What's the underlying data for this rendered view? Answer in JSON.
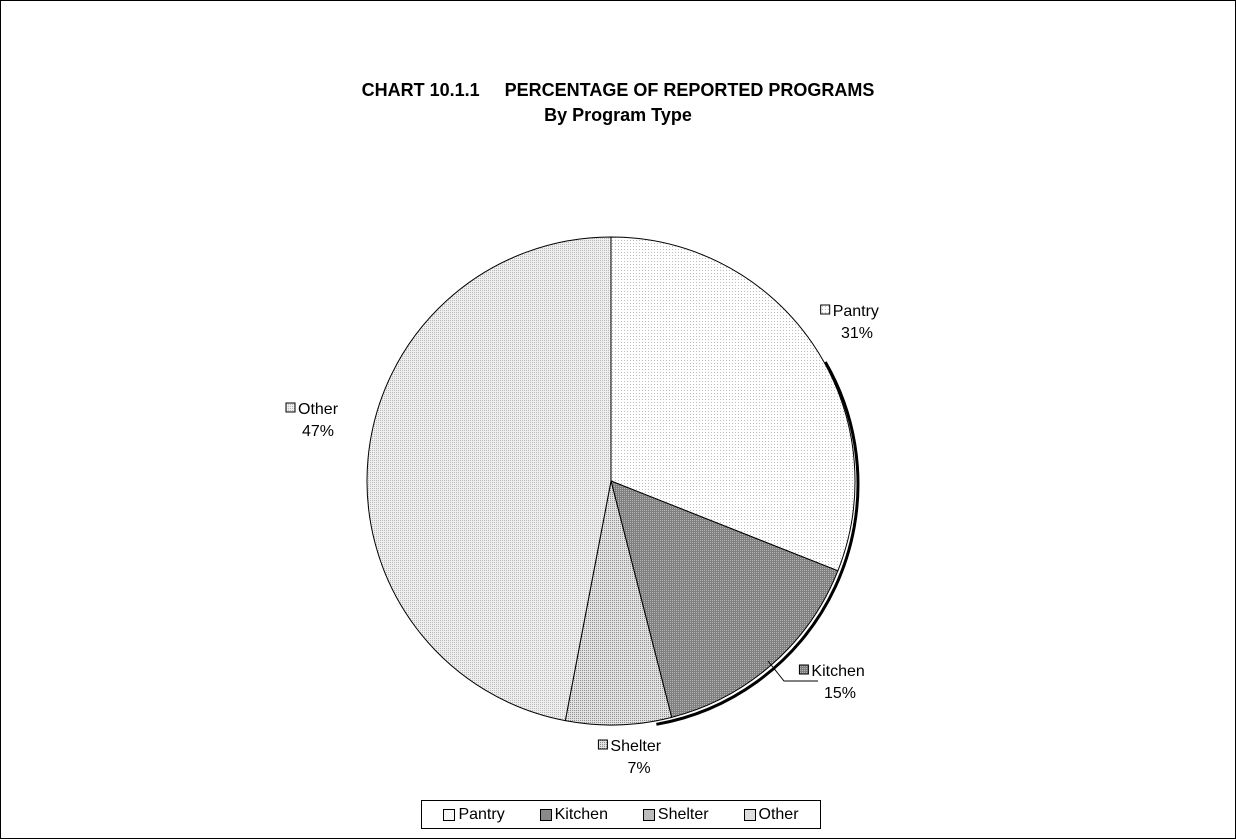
{
  "chart_data": {
    "type": "pie",
    "title": "CHART 10.1.1     PERCENTAGE OF REPORTED PROGRAMS",
    "subtitle": "By Program Type",
    "categories": [
      "Pantry",
      "Kitchen",
      "Shelter",
      "Other"
    ],
    "values": [
      31,
      15,
      7,
      47
    ],
    "value_labels": [
      "31%",
      "15%",
      "7%",
      "47%"
    ],
    "legend_position": "bottom",
    "colors": [
      "#f1f1f1",
      "#909090",
      "#c2c2c2",
      "#dcdcdc"
    ]
  }
}
